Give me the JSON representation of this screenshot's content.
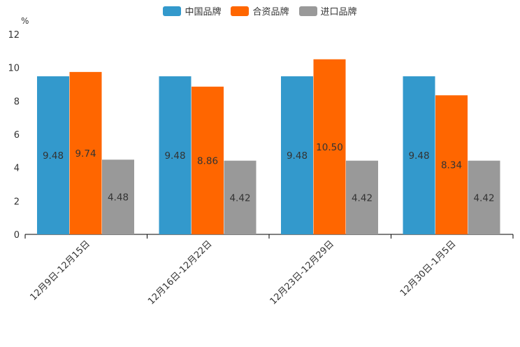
{
  "chart_data": {
    "type": "bar",
    "unit_label": "%",
    "categories": [
      "12月9日-12月15日",
      "12月16日-12月22日",
      "12月23日-12月29日",
      "12月30日-1月5日"
    ],
    "series": [
      {
        "name": "中国品牌",
        "color": "#3399cc",
        "values": [
          9.48,
          9.48,
          9.48,
          9.48
        ],
        "labels": [
          "9.48",
          "9.48",
          "9.48",
          "9.48"
        ]
      },
      {
        "name": "合资品牌",
        "color": "#ff6600",
        "values": [
          9.74,
          8.86,
          10.5,
          8.34
        ],
        "labels": [
          "9.74",
          "8.86",
          "10.50",
          "8.34"
        ]
      },
      {
        "name": "进口品牌",
        "color": "#999999",
        "values": [
          4.48,
          4.42,
          4.42,
          4.42
        ],
        "labels": [
          "4.48",
          "4.42",
          "4.42",
          "4.42"
        ]
      }
    ],
    "ylim": [
      0,
      12
    ],
    "yticks": [
      0,
      2,
      4,
      6,
      8,
      10,
      12
    ],
    "ytick_labels": [
      "0",
      "2",
      "4",
      "6",
      "8",
      "10",
      "12"
    ],
    "legend_position": "top-center",
    "grid": false
  }
}
